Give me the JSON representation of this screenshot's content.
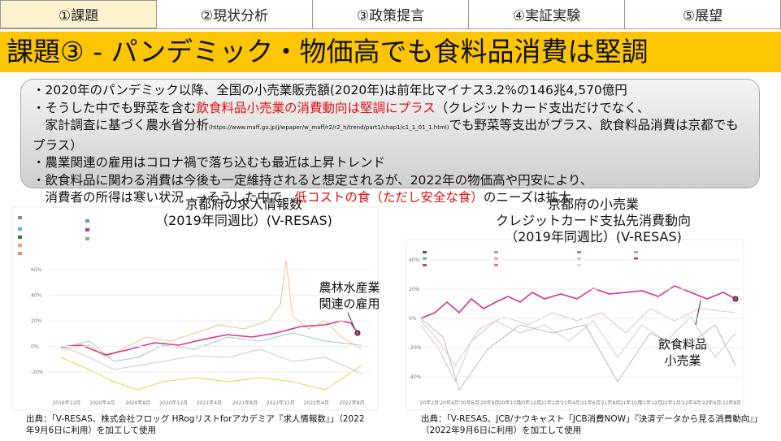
{
  "tabs": [
    "①課題",
    "②現状分析",
    "③政策提言",
    "④実証実験",
    "⑤展望"
  ],
  "title": "課題③ - パンデミック・物価高でも食料品消費は堅調",
  "bullets": [
    [
      {
        "text": "・2020年のパンデミック以降、全国の小売業販売額(2020年)は前年比マイナス3.2%の146兆4,570億円"
      }
    ],
    [
      {
        "text": "・そうした中でも野菜を含む"
      },
      {
        "text": "飲食料品小売業の消費動向は堅調にプラス",
        "style": "red"
      },
      {
        "text": "（クレジットカード支出だけでなく、"
      }
    ],
    [
      {
        "text": "　家計調査に基づく農水省分析"
      },
      {
        "text": "(https://www.maff.go.jp/j/wpaper/w_maff/r2/r2_h/trend/part1/chap1/c1_1_01_1.html)",
        "style": "small"
      },
      {
        "text": "でも野菜等支出がプラス、飲食料品消費は京都でもプラス）"
      }
    ],
    [
      {
        "text": "・農業関連の雇用はコロナ禍で落ち込むも最近は上昇トレンド"
      }
    ],
    [
      {
        "text": "・飲食料品に関わる消費は今後も一定維持されると想定されるが、2022年の物価高や円安により、"
      }
    ],
    [
      {
        "text": "　消費者の所得は寒い状況　→そうした中で、"
      },
      {
        "text": "低コストの食（ただし安全な食）",
        "style": "red"
      },
      {
        "text": "のニーズは拡大"
      }
    ]
  ],
  "left": {
    "title": [
      "京都府の求人情報数",
      "（2019年同週比）(V-RESAS)"
    ],
    "annotation": [
      "農林水産業",
      "関連の雇用"
    ],
    "yticks": [
      "60%",
      "40%",
      "20%",
      "0%",
      "-20%"
    ],
    "xticks": [
      "2019年12月",
      "2020年4月",
      "2020年8月",
      "2020年12月",
      "2021年4月",
      "2021年8月",
      "2021年12月",
      "2022年4月",
      "2022年8月"
    ],
    "source": [
      "出典：「V-RESAS、株式会社フロッグ HRogリストforアカデミア『求人情報数』」（2022",
      "年9月6日に利用）を加工して使用"
    ]
  },
  "right": {
    "title": [
      "京都府の小売業",
      "クレジットカード支払先消費動向",
      "（2019年同週比）(V-RESAS)"
    ],
    "annotation": [
      "飲食料品",
      "小売業"
    ],
    "yticks": [
      "40%",
      "20%",
      "0%",
      "-20%",
      "-40%"
    ],
    "xticks": [
      "'20年2月",
      "'20年4月",
      "'20年6月",
      "'20年8月",
      "'20年10月",
      "'20年12月",
      "'21年2月",
      "'21年4月",
      "'21年6月",
      "'21年8月",
      "'21年10月",
      "'21年12月",
      "'22年2月",
      "'22年4月",
      "'22年6月",
      "'22年8月"
    ],
    "source": [
      "出典：「V-RESAS、JCB/ナウキャスト「JCB消費NOW」『決済データから見る消費動向』」",
      "（2022年9月6日に利用）を加工して使用"
    ]
  }
}
